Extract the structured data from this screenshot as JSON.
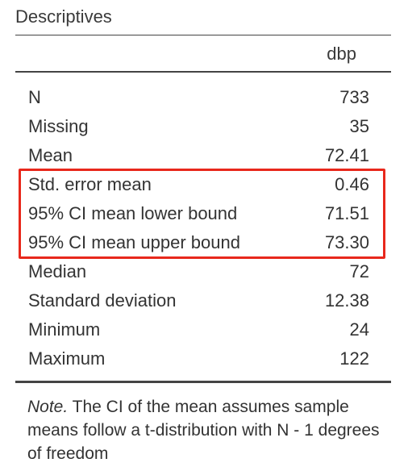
{
  "table": {
    "title": "Descriptives",
    "column_header": "dbp",
    "rows": [
      {
        "label": "N",
        "value": "733"
      },
      {
        "label": "Missing",
        "value": "35"
      },
      {
        "label": "Mean",
        "value": "72.41"
      },
      {
        "label": "Std. error mean",
        "value": "0.46"
      },
      {
        "label": "95% CI mean lower bound",
        "value": "71.51"
      },
      {
        "label": "95% CI mean upper bound",
        "value": "73.30"
      },
      {
        "label": "Median",
        "value": "72"
      },
      {
        "label": "Standard deviation",
        "value": "12.38"
      },
      {
        "label": "Minimum",
        "value": "24"
      },
      {
        "label": "Maximum",
        "value": "122"
      }
    ],
    "note_prefix": "Note.",
    "note_text": " The CI of the mean assumes sample means follow a t-distribution with N - 1 degrees of freedom"
  },
  "highlight": {
    "color": "#e8281c"
  }
}
